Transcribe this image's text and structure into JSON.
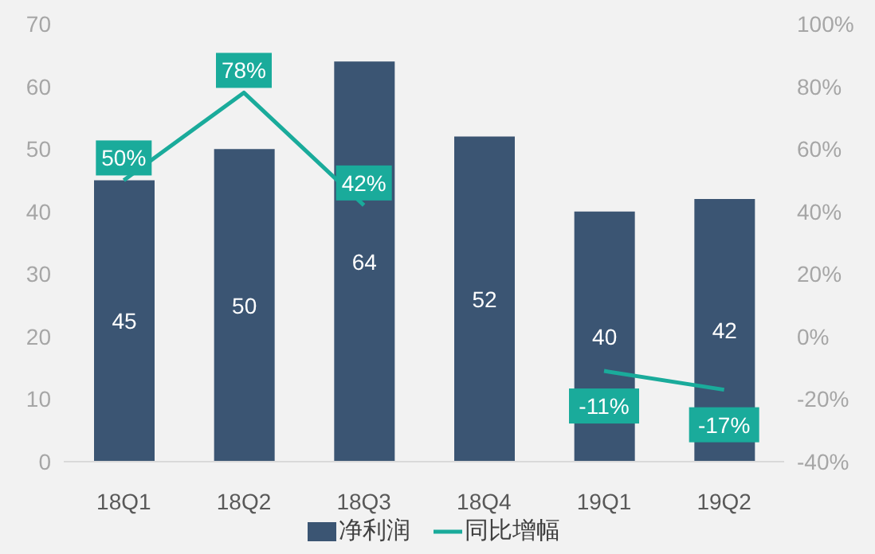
{
  "chart_data": {
    "type": "bar",
    "categories": [
      "18Q1",
      "18Q2",
      "18Q3",
      "18Q4",
      "19Q1",
      "19Q2"
    ],
    "series": [
      {
        "name": "净利润",
        "color": "#3b5573",
        "values": [
          45,
          50,
          64,
          52,
          40,
          42
        ],
        "value_labels": [
          "45",
          "50",
          "64",
          "52",
          "40",
          "42"
        ]
      },
      {
        "name": "同比增幅",
        "type": "line",
        "axis": "y2",
        "color": "#1aab9b",
        "values": [
          50,
          78,
          42,
          null,
          -11,
          -17
        ],
        "value_labels": [
          "50%",
          "78%",
          "42%",
          null,
          "-11%",
          "-17%"
        ]
      }
    ],
    "ylim": [
      0,
      70
    ],
    "yticks": [
      0,
      10,
      20,
      30,
      40,
      50,
      60,
      70
    ],
    "y2lim": [
      -40,
      100
    ],
    "y2ticks": [
      {
        "value": -40,
        "label": "-40%"
      },
      {
        "value": -20,
        "label": "-20%"
      },
      {
        "value": 0,
        "label": "0%"
      },
      {
        "value": 20,
        "label": "20%"
      },
      {
        "value": 40,
        "label": "40%"
      },
      {
        "value": 60,
        "label": "60%"
      },
      {
        "value": 80,
        "label": "80%"
      },
      {
        "value": 100,
        "label": "100%"
      }
    ],
    "grid": false,
    "legend": "bottom",
    "marker": "none",
    "line_style": "solid"
  }
}
